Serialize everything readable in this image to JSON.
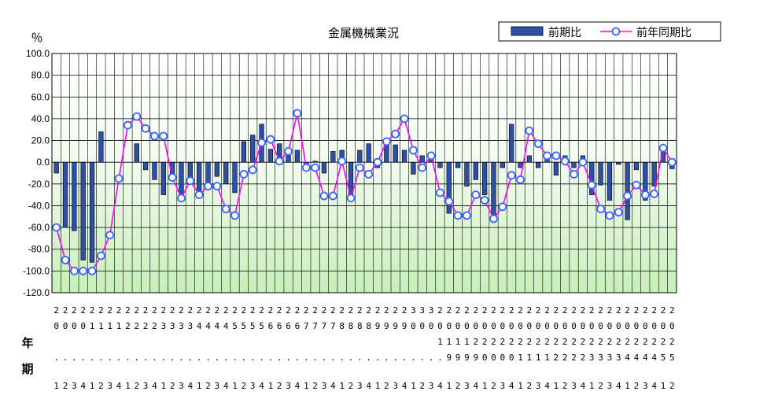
{
  "chart_data": {
    "type": "bar",
    "title": "金属機械業況",
    "yunit": "％",
    "xlabel": "年\n期",
    "ylim": [
      -120,
      100
    ],
    "yticks": [
      "100.0",
      "80.0",
      "60.0",
      "40.0",
      "20.0",
      "0.0",
      "-20.0",
      "-40.0",
      "-60.0",
      "-80.0",
      "-100.0",
      "-120.0"
    ],
    "categories": [
      [
        "2",
        "0",
        "",
        ".",
        "1"
      ],
      [
        "2",
        "0",
        "",
        ".",
        "2"
      ],
      [
        "2",
        "0",
        "",
        ".",
        "3"
      ],
      [
        "2",
        "0",
        "",
        ".",
        "4"
      ],
      [
        "2",
        "1",
        "",
        ".",
        "1"
      ],
      [
        "2",
        "1",
        "",
        ".",
        "2"
      ],
      [
        "2",
        "1",
        "",
        ".",
        "3"
      ],
      [
        "2",
        "1",
        "",
        ".",
        "4"
      ],
      [
        "2",
        "2",
        "",
        ".",
        "1"
      ],
      [
        "2",
        "2",
        "",
        ".",
        "2"
      ],
      [
        "2",
        "2",
        "",
        ".",
        "3"
      ],
      [
        "2",
        "2",
        "",
        ".",
        "4"
      ],
      [
        "2",
        "3",
        "",
        ".",
        "1"
      ],
      [
        "2",
        "3",
        "",
        ".",
        "2"
      ],
      [
        "2",
        "3",
        "",
        ".",
        "3"
      ],
      [
        "2",
        "3",
        "",
        ".",
        "4"
      ],
      [
        "2",
        "4",
        "",
        ".",
        "1"
      ],
      [
        "2",
        "4",
        "",
        ".",
        "2"
      ],
      [
        "2",
        "4",
        "",
        ".",
        "3"
      ],
      [
        "2",
        "4",
        "",
        ".",
        "4"
      ],
      [
        "2",
        "5",
        "",
        ".",
        "1"
      ],
      [
        "2",
        "5",
        "",
        ".",
        "2"
      ],
      [
        "2",
        "5",
        "",
        ".",
        "3"
      ],
      [
        "2",
        "5",
        "",
        ".",
        "4"
      ],
      [
        "2",
        "6",
        "",
        ".",
        "1"
      ],
      [
        "2",
        "6",
        "",
        ".",
        "2"
      ],
      [
        "2",
        "6",
        "",
        ".",
        "3"
      ],
      [
        "2",
        "6",
        "",
        ".",
        "4"
      ],
      [
        "2",
        "7",
        "",
        ".",
        "1"
      ],
      [
        "2",
        "7",
        "",
        ".",
        "2"
      ],
      [
        "2",
        "7",
        "",
        ".",
        "3"
      ],
      [
        "2",
        "7",
        "",
        ".",
        "4"
      ],
      [
        "2",
        "8",
        "",
        ".",
        "1"
      ],
      [
        "2",
        "8",
        "",
        ".",
        "2"
      ],
      [
        "2",
        "8",
        "",
        ".",
        "3"
      ],
      [
        "2",
        "8",
        "",
        ".",
        "4"
      ],
      [
        "2",
        "9",
        "",
        ".",
        "1"
      ],
      [
        "2",
        "9",
        "",
        ".",
        "2"
      ],
      [
        "2",
        "9",
        "",
        ".",
        "3"
      ],
      [
        "2",
        "9",
        "",
        ".",
        "4"
      ],
      [
        "3",
        "0",
        "",
        ".",
        "1"
      ],
      [
        "3",
        "0",
        "",
        ".",
        "2"
      ],
      [
        "3",
        "0",
        "",
        ".",
        "3"
      ],
      [
        "2",
        "0",
        "1",
        ".",
        "4"
      ],
      [
        "2",
        "0",
        "1",
        "9",
        "1"
      ],
      [
        "2",
        "0",
        "1",
        "9",
        "2"
      ],
      [
        "2",
        "0",
        "1",
        "9",
        "3"
      ],
      [
        "2",
        "0",
        "2",
        "9",
        "4"
      ],
      [
        "2",
        "0",
        "2",
        "0",
        "1"
      ],
      [
        "2",
        "0",
        "2",
        "0",
        "2"
      ],
      [
        "2",
        "0",
        "2",
        "0",
        "3"
      ],
      [
        "2",
        "0",
        "2",
        "0",
        "4"
      ],
      [
        "2",
        "0",
        "2",
        "1",
        "1"
      ],
      [
        "2",
        "0",
        "2",
        "1",
        "2"
      ],
      [
        "2",
        "0",
        "2",
        "1",
        "3"
      ],
      [
        "2",
        "0",
        "2",
        "1",
        "4"
      ],
      [
        "2",
        "0",
        "2",
        "2",
        "1"
      ],
      [
        "2",
        "0",
        "2",
        "2",
        "2"
      ],
      [
        "2",
        "0",
        "2",
        "2",
        "3"
      ],
      [
        "2",
        "0",
        "2",
        "2",
        "4"
      ],
      [
        "2",
        "0",
        "2",
        "3",
        "1"
      ],
      [
        "2",
        "0",
        "2",
        "3",
        "2"
      ],
      [
        "2",
        "0",
        "2",
        "3",
        "3"
      ],
      [
        "2",
        "0",
        "2",
        "3",
        "4"
      ],
      [
        "2",
        "0",
        "2",
        "4",
        "1"
      ],
      [
        "2",
        "0",
        "2",
        "4",
        "2"
      ],
      [
        "2",
        "0",
        "2",
        "4",
        "3"
      ],
      [
        "2",
        "0",
        "2",
        "4",
        "4"
      ],
      [
        "2",
        "0",
        "2",
        "5",
        "1"
      ],
      [
        "2",
        "0",
        "2",
        "5",
        "2"
      ]
    ],
    "series": [
      {
        "name": "前期比",
        "type": "bar",
        "color": "#2E4FA6",
        "values": [
          -10,
          -60,
          -63,
          -90,
          -92,
          28,
          0,
          0,
          0,
          17,
          -7,
          -16,
          -30,
          -17,
          -30,
          -14,
          -28,
          -25,
          -13,
          -20,
          -28,
          19,
          25,
          35,
          12,
          17,
          6,
          11,
          -2,
          1,
          -10,
          10,
          11,
          -30,
          11,
          17,
          -5,
          16,
          16,
          11,
          -11,
          6,
          6,
          -5,
          -47,
          -5,
          -22,
          -16,
          -30,
          -50,
          -5,
          35,
          -5,
          6,
          -5,
          6,
          -12,
          6,
          -5,
          6,
          -30,
          -21,
          -35,
          -2,
          -53,
          -7,
          -35,
          -22,
          9,
          -6
        ]
      },
      {
        "name": "前年同期比",
        "type": "line",
        "color": "#FF00FF",
        "marker": "circle",
        "values": [
          -60,
          -90,
          -100,
          -100,
          -100,
          -86,
          -67,
          -15,
          34,
          42,
          31,
          24,
          24,
          -14,
          -33,
          -17,
          -30,
          -22,
          -22,
          -43,
          -49,
          -11,
          -7,
          18,
          21,
          1,
          10,
          45,
          -5,
          -5,
          -31,
          -31,
          1,
          -33,
          -5,
          -11,
          0,
          19,
          26,
          40,
          11,
          -5,
          6,
          -28,
          -36,
          -49,
          -49,
          -30,
          -35,
          -52,
          -41,
          -12,
          -16,
          29,
          17,
          6,
          6,
          1,
          -11,
          0,
          -21,
          -43,
          -49,
          -46,
          -31,
          -21,
          -30,
          -29,
          13,
          0
        ]
      }
    ],
    "legend": "top-right",
    "grid": true
  }
}
